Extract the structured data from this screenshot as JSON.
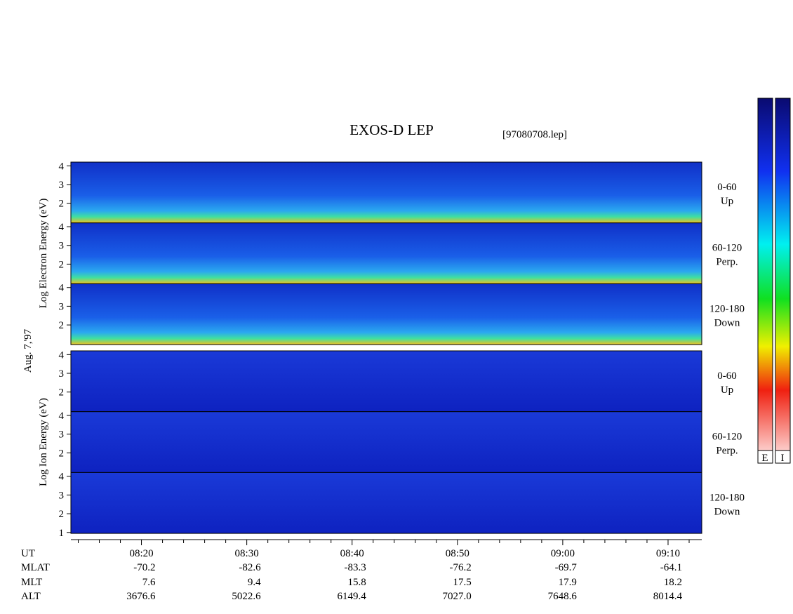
{
  "chart_data": {
    "type": "spectrogram",
    "title": "EXOS-D LEP",
    "file": "[97080708.lep]",
    "date_label": "Aug. 7,'97",
    "groups": [
      {
        "ylabel": "Log  Electron  Energy (eV)",
        "panels": [
          {
            "labels": [
              "0-60",
              "Up"
            ],
            "ylim": [
              0.95,
              4.2
            ],
            "yticks": [
              2,
              3,
              4
            ]
          },
          {
            "labels": [
              "60-120",
              "Perp."
            ],
            "ylim": [
              0.95,
              4.2
            ],
            "yticks": [
              2,
              3,
              4
            ]
          },
          {
            "labels": [
              "120-180",
              "Down"
            ],
            "ylim": [
              0.95,
              4.2
            ],
            "yticks": [
              2,
              3,
              4
            ]
          }
        ]
      },
      {
        "ylabel": "Log  Ion  Energy (eV)",
        "panels": [
          {
            "labels": [
              "0-60",
              "Up"
            ],
            "ylim": [
              0.95,
              4.2
            ],
            "yticks": [
              2,
              3,
              4
            ]
          },
          {
            "labels": [
              "60-120",
              "Perp."
            ],
            "ylim": [
              0.95,
              4.2
            ],
            "yticks": [
              2,
              3,
              4
            ]
          },
          {
            "labels": [
              "120-180",
              "Down"
            ],
            "ylim": [
              0.95,
              4.2
            ],
            "yticks": [
              1,
              2,
              3,
              4
            ]
          }
        ]
      }
    ],
    "xlim": [
      13.3,
      73.2
    ],
    "xticks": [
      {
        "value": 20,
        "label": "08:20"
      },
      {
        "value": 30,
        "label": "08:30"
      },
      {
        "value": 40,
        "label": "08:40"
      },
      {
        "value": 50,
        "label": "08:50"
      },
      {
        "value": 60,
        "label": "09:00"
      },
      {
        "value": 70,
        "label": "09:10"
      }
    ],
    "xticks_minor": [
      14,
      16,
      18,
      22,
      24,
      26,
      28,
      32,
      34,
      36,
      38,
      42,
      44,
      46,
      48,
      52,
      54,
      56,
      58,
      62,
      64,
      66,
      68,
      72
    ],
    "ephemeris": {
      "names": [
        "UT",
        "MLAT",
        "MLT",
        "ALT"
      ],
      "rows": [
        [
          "-70.2",
          "-82.6",
          "-83.3",
          "-76.2",
          "-69.7",
          "-64.1"
        ],
        [
          "7.6",
          "9.4",
          "15.8",
          "17.5",
          "17.9",
          "18.2"
        ],
        [
          "3676.6",
          "5022.6",
          "6149.4",
          "7027.0",
          "7648.6",
          "8014.4"
        ]
      ]
    },
    "colorbar_labels": [
      "E",
      "I"
    ]
  }
}
